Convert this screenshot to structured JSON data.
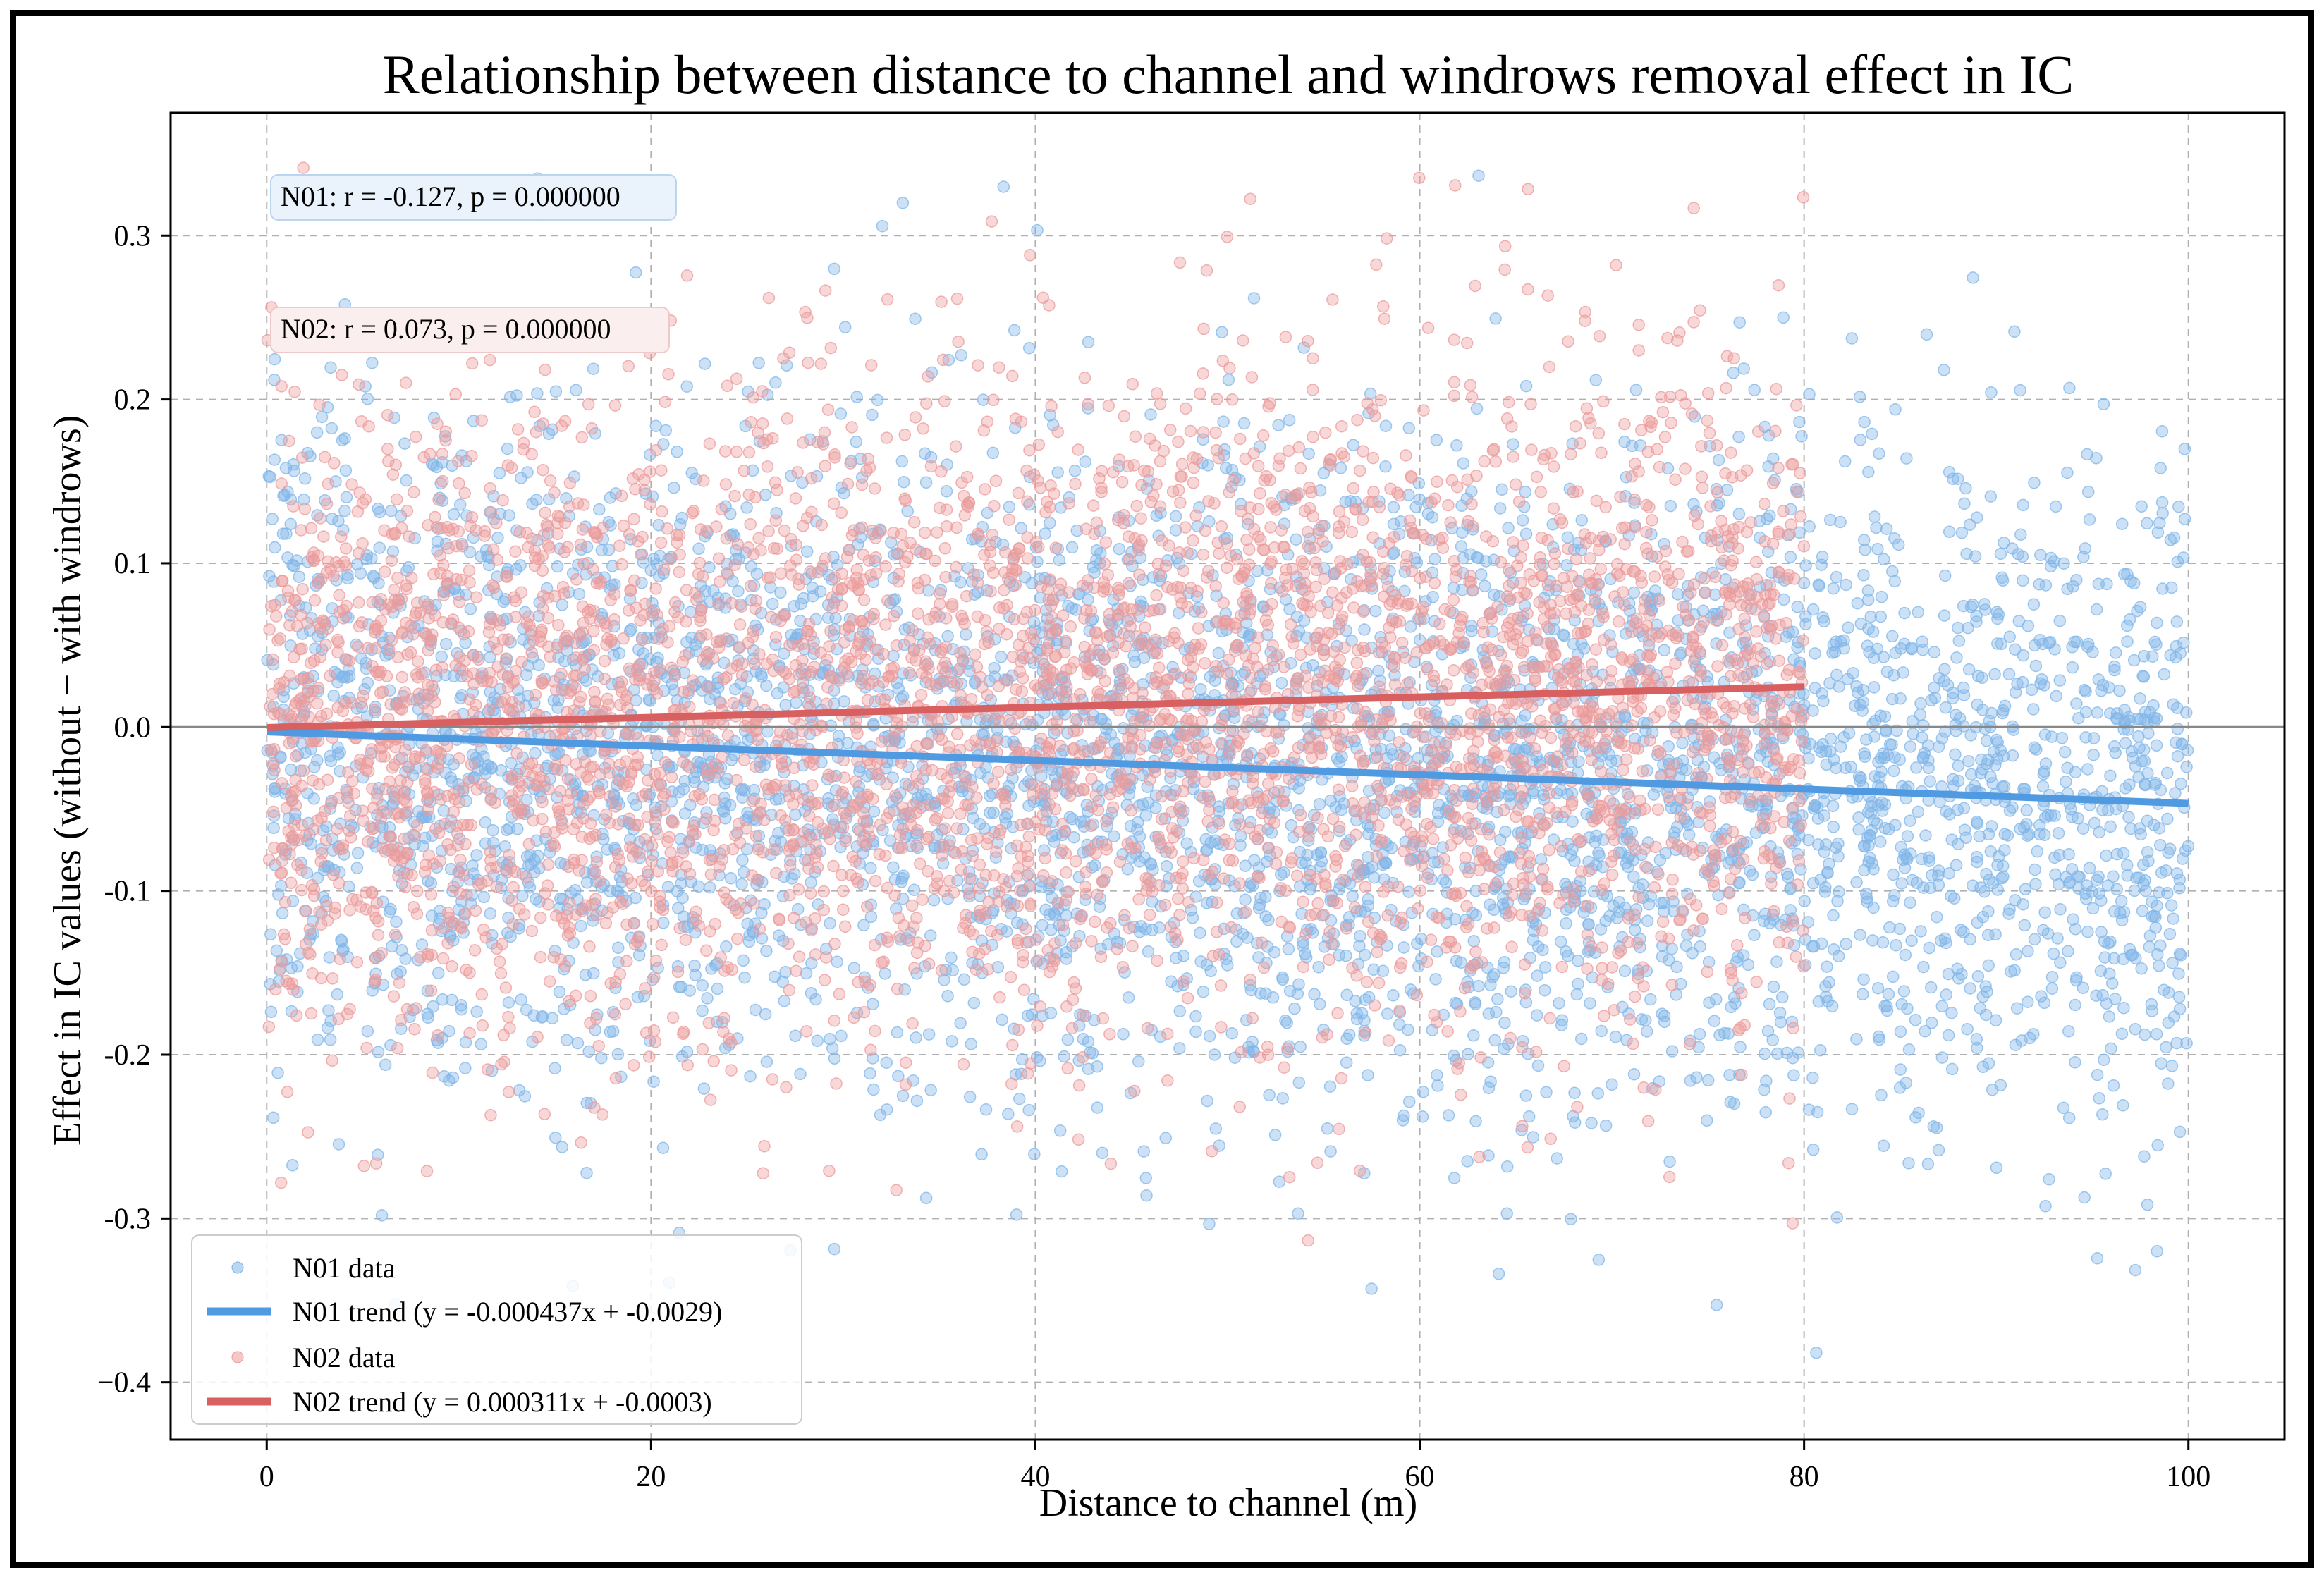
{
  "chart_data": {
    "type": "scatter",
    "title": "Relationship between distance to channel and windrows removal effect in IC",
    "xlabel": "Distance to channel (m)",
    "ylabel": "Effect in IC values (without − with windrows)",
    "xlim": [
      -5,
      105
    ],
    "ylim": [
      -0.435,
      0.375
    ],
    "xticks": [
      0,
      20,
      40,
      60,
      80,
      100
    ],
    "xtick_labels": [
      "0",
      "20",
      "40",
      "60",
      "80",
      "100"
    ],
    "yticks": [
      0.3,
      0.2,
      0.1,
      0.0,
      -0.1,
      -0.2,
      -0.3,
      -0.4
    ],
    "ytick_labels": [
      "0.3",
      "0.2",
      "0.1",
      "0.0",
      "-0.1",
      "-0.2",
      "-0.3",
      "−0.4"
    ],
    "grid": true,
    "reference_line_y": 0.0,
    "annotations": [
      {
        "text": "N01: r = -0.127, p = 0.000000",
        "series": "N01"
      },
      {
        "text": "N02: r = 0.073, p = 0.000000",
        "series": "N02"
      }
    ],
    "legend": {
      "position": "bottom-left",
      "entries": [
        {
          "label": "N01 data",
          "kind": "marker",
          "color": "#7fb5e8"
        },
        {
          "label": "N01 trend (y = -0.000437x + -0.0029)",
          "kind": "line",
          "color": "#4f9ae0"
        },
        {
          "label": "N02 data",
          "kind": "marker",
          "color": "#ec9a9a"
        },
        {
          "label": "N02 trend (y = 0.000311x + -0.0003)",
          "kind": "line",
          "color": "#d96060"
        }
      ]
    },
    "series": [
      {
        "name": "N01 data",
        "kind": "scatter",
        "color": "#7fb5e8",
        "x_range": [
          0,
          100
        ],
        "n_points": 4800,
        "y_mean_slope": -0.000437,
        "y_mean_intercept": -0.0029,
        "y_spread": 0.1
      },
      {
        "name": "N02 data",
        "kind": "scatter",
        "color": "#ec9a9a",
        "x_range": [
          0,
          80
        ],
        "n_points": 4200,
        "y_mean_slope": 0.000311,
        "y_mean_intercept": -0.0003,
        "y_spread": 0.1
      },
      {
        "name": "N01 trend",
        "kind": "line",
        "color": "#4f9ae0",
        "slope": -0.000437,
        "intercept": -0.0029,
        "x_range": [
          0,
          100
        ]
      },
      {
        "name": "N02 trend",
        "kind": "line",
        "color": "#d96060",
        "slope": 0.000311,
        "intercept": -0.0003,
        "x_range": [
          0,
          80
        ]
      }
    ]
  }
}
